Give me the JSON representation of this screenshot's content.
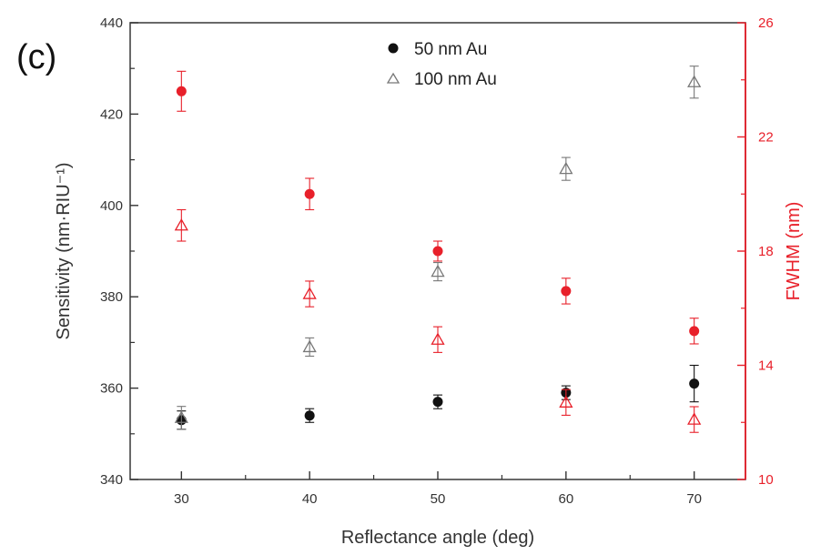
{
  "chart_data": {
    "type": "scatter",
    "panel_label": "(c)",
    "xlabel": "Reflectance angle (deg)",
    "ylabel": "Sensitivity (nm·RIU⁻¹)",
    "y2label": "FWHM (nm)",
    "xlim": [
      26,
      74
    ],
    "ylim": [
      340,
      440
    ],
    "y2lim": [
      10,
      26
    ],
    "x_ticks": [
      30,
      40,
      50,
      60,
      70
    ],
    "y_ticks": [
      340,
      360,
      380,
      400,
      420,
      440
    ],
    "y2_ticks": [
      10,
      14,
      18,
      22,
      26
    ],
    "legend_position": "top-center",
    "colors": {
      "sensitivity_axis": "#333333",
      "fwhm_axis": "#e8202a",
      "black": "#111111",
      "red": "#e8202a",
      "gray": "#777777"
    },
    "series": [
      {
        "name": "50 nm Au",
        "axis": "left",
        "marker": "circle-filled",
        "color": "#111111",
        "x": [
          30,
          40,
          50,
          60,
          70
        ],
        "y": [
          353,
          354,
          357,
          359,
          361
        ],
        "err": [
          2,
          1.5,
          1.5,
          1.5,
          4
        ]
      },
      {
        "name": "100 nm Au",
        "axis": "left",
        "marker": "triangle-open",
        "color": "#777777",
        "x": [
          30,
          40,
          50,
          60,
          70
        ],
        "y": [
          353.5,
          369,
          385.5,
          408,
          427
        ],
        "err": [
          2.5,
          2,
          2,
          2.5,
          3.5
        ]
      },
      {
        "axis": "right",
        "marker": "circle-filled",
        "color": "#e8202a",
        "x": [
          30,
          40,
          50,
          60,
          70
        ],
        "y": [
          23.6,
          20,
          18,
          16.6,
          15.2
        ],
        "err": [
          0.7,
          0.55,
          0.35,
          0.45,
          0.45
        ]
      },
      {
        "axis": "right",
        "marker": "triangle-open",
        "color": "#e8202a",
        "x": [
          30,
          40,
          50,
          60,
          70
        ],
        "y": [
          18.9,
          16.5,
          14.9,
          12.7,
          12.1
        ],
        "err": [
          0.55,
          0.45,
          0.45,
          0.45,
          0.45
        ]
      }
    ],
    "legend": [
      {
        "label": "50 nm Au",
        "marker": "circle-filled",
        "color": "#111111"
      },
      {
        "label": "100 nm Au",
        "marker": "triangle-open",
        "color": "#777777"
      }
    ]
  }
}
